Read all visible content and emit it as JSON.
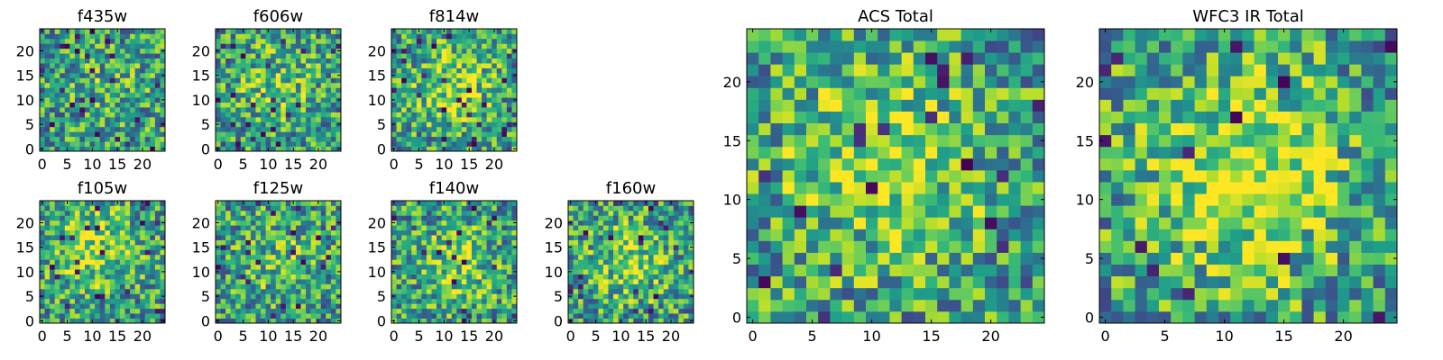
{
  "chart_data": [
    {
      "type": "heatmap",
      "title": "f435w",
      "colormap": "viridis",
      "shape": [
        25,
        25
      ],
      "xlim": [
        0,
        24
      ],
      "ylim": [
        0,
        24
      ],
      "xticks": [
        0,
        5,
        10,
        15,
        20
      ],
      "yticks": [
        0,
        5,
        10,
        15,
        20
      ],
      "seed": 11,
      "bright_center": [
        12,
        12
      ],
      "bright_strength": 0.1
    },
    {
      "type": "heatmap",
      "title": "f606w",
      "colormap": "viridis",
      "shape": [
        25,
        25
      ],
      "xlim": [
        0,
        24
      ],
      "ylim": [
        0,
        24
      ],
      "xticks": [
        0,
        5,
        10,
        15,
        20
      ],
      "yticks": [
        0,
        5,
        10,
        15,
        20
      ],
      "seed": 23,
      "bright_center": [
        12,
        13
      ],
      "bright_strength": 0.18
    },
    {
      "type": "heatmap",
      "title": "f814w",
      "colormap": "viridis",
      "shape": [
        25,
        25
      ],
      "xlim": [
        0,
        24
      ],
      "ylim": [
        0,
        24
      ],
      "xticks": [
        0,
        5,
        10,
        15,
        20
      ],
      "yticks": [
        0,
        5,
        10,
        15,
        20
      ],
      "seed": 37,
      "bright_center": [
        12,
        13
      ],
      "bright_strength": 0.3
    },
    {
      "type": "heatmap",
      "title": "f105w",
      "colormap": "viridis",
      "shape": [
        25,
        25
      ],
      "xlim": [
        0,
        24
      ],
      "ylim": [
        0,
        24
      ],
      "xticks": [
        0,
        5,
        10,
        15,
        20
      ],
      "yticks": [
        0,
        5,
        10,
        15,
        20
      ],
      "seed": 41,
      "bright_center": [
        10,
        15
      ],
      "bright_strength": 0.3
    },
    {
      "type": "heatmap",
      "title": "f125w",
      "colormap": "viridis",
      "shape": [
        25,
        25
      ],
      "xlim": [
        0,
        24
      ],
      "ylim": [
        0,
        24
      ],
      "xticks": [
        0,
        5,
        10,
        15,
        20
      ],
      "yticks": [
        0,
        5,
        10,
        15,
        20
      ],
      "seed": 53,
      "bright_center": [
        12,
        12
      ],
      "bright_strength": 0.15
    },
    {
      "type": "heatmap",
      "title": "f140w",
      "colormap": "viridis",
      "shape": [
        25,
        25
      ],
      "xlim": [
        0,
        24
      ],
      "ylim": [
        0,
        24
      ],
      "xticks": [
        0,
        5,
        10,
        15,
        20
      ],
      "yticks": [
        0,
        5,
        10,
        15,
        20
      ],
      "seed": 67,
      "bright_center": [
        13,
        11
      ],
      "bright_strength": 0.25
    },
    {
      "type": "heatmap",
      "title": "f160w",
      "colormap": "viridis",
      "shape": [
        25,
        25
      ],
      "xlim": [
        0,
        24
      ],
      "ylim": [
        0,
        24
      ],
      "xticks": [
        0,
        5,
        10,
        15,
        20
      ],
      "yticks": [
        0,
        5,
        10,
        15,
        20
      ],
      "seed": 79,
      "bright_center": [
        12,
        12
      ],
      "bright_strength": 0.25
    },
    {
      "type": "heatmap",
      "title": "ACS Total",
      "colormap": "viridis",
      "shape": [
        25,
        25
      ],
      "xlim": [
        0,
        24
      ],
      "ylim": [
        0,
        24
      ],
      "xticks": [
        0,
        5,
        10,
        15,
        20
      ],
      "yticks": [
        0,
        5,
        10,
        15,
        20
      ],
      "seed": 97,
      "bright_center": [
        11,
        13
      ],
      "bright_strength": 0.35
    },
    {
      "type": "heatmap",
      "title": "WFC3 IR Total",
      "colormap": "viridis",
      "shape": [
        25,
        25
      ],
      "xlim": [
        0,
        24
      ],
      "ylim": [
        0,
        24
      ],
      "xticks": [
        0,
        5,
        10,
        15,
        20
      ],
      "yticks": [
        0,
        5,
        10,
        15,
        20
      ],
      "seed": 131,
      "bright_center": [
        12,
        12
      ],
      "bright_strength": 0.45
    }
  ]
}
